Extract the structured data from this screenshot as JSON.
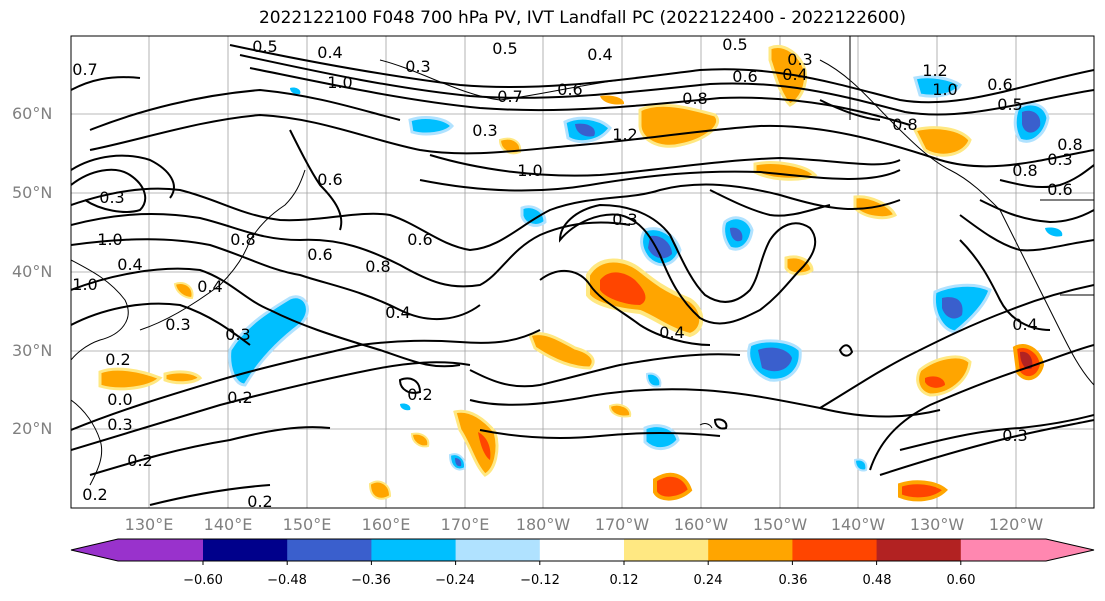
{
  "title": "2022122100 F048 700 hPa PV, IVT Landfall PC (2022122400 - 2022122600)",
  "lat_labels": [
    "60°N",
    "50°N",
    "40°N",
    "30°N",
    "20°N"
  ],
  "lon_labels": [
    "130°E",
    "140°E",
    "150°E",
    "160°E",
    "170°E",
    "180°W",
    "170°W",
    "160°W",
    "150°W",
    "140°W",
    "130°W",
    "120°W"
  ],
  "colorbar": {
    "ticks": [
      "−0.60",
      "−0.48",
      "−0.36",
      "−0.24",
      "−0.12",
      "0.12",
      "0.24",
      "0.36",
      "0.48",
      "0.60"
    ],
    "colors": [
      "#9932cc",
      "#00008b",
      "#3a5fcd",
      "#00bfff",
      "#b0e2ff",
      "#ffffff",
      "#ffe882",
      "#ffa500",
      "#ff4500",
      "#b22222",
      "#ff87b0"
    ]
  },
  "contour_labels": [
    "0.5",
    "0.4",
    "0.3",
    "1.0",
    "0.5",
    "0.4",
    "0.3",
    "0.7",
    "0.6",
    "0.8",
    "1.2",
    "1.0",
    "0.5",
    "0.6",
    "0.4",
    "0.3",
    "1.2",
    "1.0",
    "0.6",
    "0.5",
    "0.8",
    "0.8",
    "0.3",
    "1.0",
    "0.7",
    "0.8",
    "0.3",
    "0.6",
    "0.6",
    "0.8",
    "0.4",
    "0.3",
    "0.3",
    "0.4",
    "0.4",
    "0.2",
    "0.2",
    "0.2",
    "0.0",
    "0.2",
    "0.3",
    "0.6",
    "0.2",
    "1.0",
    "0.3",
    "0.8",
    "0.6",
    "0.4",
    "0.2",
    "0.3",
    "0.4"
  ],
  "colors": {
    "contour": "#000000",
    "grid": "#a0a0a0",
    "coast": "#000000",
    "axis_label": "#808080"
  }
}
